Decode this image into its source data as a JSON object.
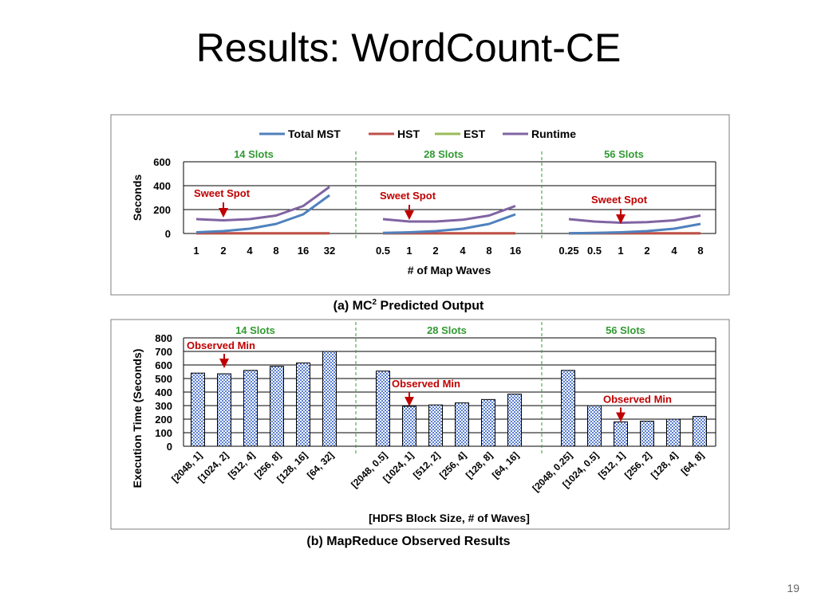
{
  "slide": {
    "title": "Results: WordCount-CE",
    "page_number": "19"
  },
  "colors": {
    "total_mst": "#4F81BD",
    "hst": "#C0504D",
    "est": "#9BBB59",
    "runtime": "#8064A2",
    "slots": "#339933",
    "annotation": "#C00000",
    "bar_fill": "#8EA9DB"
  },
  "chart_data": [
    {
      "type": "line",
      "caption_prefix": "(a) MC",
      "caption_sup": "2",
      "caption_suffix": " Predicted Output",
      "ylabel": "Seconds",
      "xlabel": "# of Map Waves",
      "ylim": [
        0,
        600
      ],
      "yticks": [
        "0",
        "200",
        "400",
        "600"
      ],
      "grid": true,
      "legend_position": "top",
      "groups": [
        {
          "label": "14 Slots",
          "categories": [
            "1",
            "2",
            "4",
            "8",
            "16",
            "32"
          ],
          "series": [
            {
              "name": "Total MST",
              "values": [
                10,
                20,
                40,
                80,
                160,
                320
              ]
            },
            {
              "name": "HST",
              "values": [
                2,
                2,
                2,
                2,
                2,
                2
              ]
            },
            {
              "name": "EST",
              "values": [
                1,
                1,
                1,
                1,
                1,
                1
              ]
            },
            {
              "name": "Runtime",
              "values": [
                120,
                110,
                120,
                150,
                230,
                390
              ]
            }
          ],
          "annotation": {
            "text": "Sweet Spot",
            "index": 1
          }
        },
        {
          "label": "28 Slots",
          "categories": [
            "0.5",
            "1",
            "2",
            "4",
            "8",
            "16"
          ],
          "series": [
            {
              "name": "Total MST",
              "values": [
                5,
                10,
                20,
                40,
                80,
                160
              ]
            },
            {
              "name": "HST",
              "values": [
                2,
                2,
                2,
                2,
                2,
                2
              ]
            },
            {
              "name": "EST",
              "values": [
                1,
                1,
                1,
                1,
                1,
                1
              ]
            },
            {
              "name": "Runtime",
              "values": [
                120,
                100,
                100,
                115,
                150,
                230
              ]
            }
          ],
          "annotation": {
            "text": "Sweet Spot",
            "index": 1
          }
        },
        {
          "label": "56 Slots",
          "categories": [
            "0.25",
            "0.5",
            "1",
            "2",
            "4",
            "8"
          ],
          "series": [
            {
              "name": "Total MST",
              "values": [
                2,
                5,
                10,
                20,
                40,
                80
              ]
            },
            {
              "name": "HST",
              "values": [
                2,
                2,
                2,
                2,
                2,
                2
              ]
            },
            {
              "name": "EST",
              "values": [
                1,
                1,
                1,
                1,
                1,
                1
              ]
            },
            {
              "name": "Runtime",
              "values": [
                120,
                100,
                90,
                95,
                110,
                150
              ]
            }
          ],
          "annotation": {
            "text": "Sweet Spot",
            "index": 2
          }
        }
      ]
    },
    {
      "type": "bar",
      "caption": "(b) MapReduce Observed Results",
      "ylabel": "Execution Time (Seconds)",
      "xlabel": "[HDFS Block Size, # of Waves]",
      "ylim": [
        0,
        800
      ],
      "yticks": [
        "0",
        "100",
        "200",
        "300",
        "400",
        "500",
        "600",
        "700",
        "800"
      ],
      "grid": true,
      "groups": [
        {
          "label": "14 Slots",
          "categories": [
            "[2048, 1]",
            "[1024, 2]",
            "[512, 4]",
            "[256, 8]",
            "[128, 16]",
            "[64, 32]"
          ],
          "values": [
            540,
            535,
            560,
            590,
            615,
            700
          ],
          "annotation": {
            "text": "Observed Min",
            "index": 1
          }
        },
        {
          "label": "28 Slots",
          "categories": [
            "[2048, 0.5]",
            "[1024, 1]",
            "[512, 2]",
            "[256, 4]",
            "[128, 8]",
            "[64, 16]"
          ],
          "values": [
            555,
            295,
            305,
            320,
            345,
            385
          ],
          "annotation": {
            "text": "Observed Min",
            "index": 1
          }
        },
        {
          "label": "56 Slots",
          "categories": [
            "[2048, 0.25]",
            "[1024, 0.5]",
            "[512, 1]",
            "[256, 2]",
            "[128, 4]",
            "[64, 8]"
          ],
          "values": [
            560,
            300,
            180,
            185,
            200,
            220
          ],
          "annotation": {
            "text": "Observed Min",
            "index": 2
          }
        }
      ]
    }
  ]
}
